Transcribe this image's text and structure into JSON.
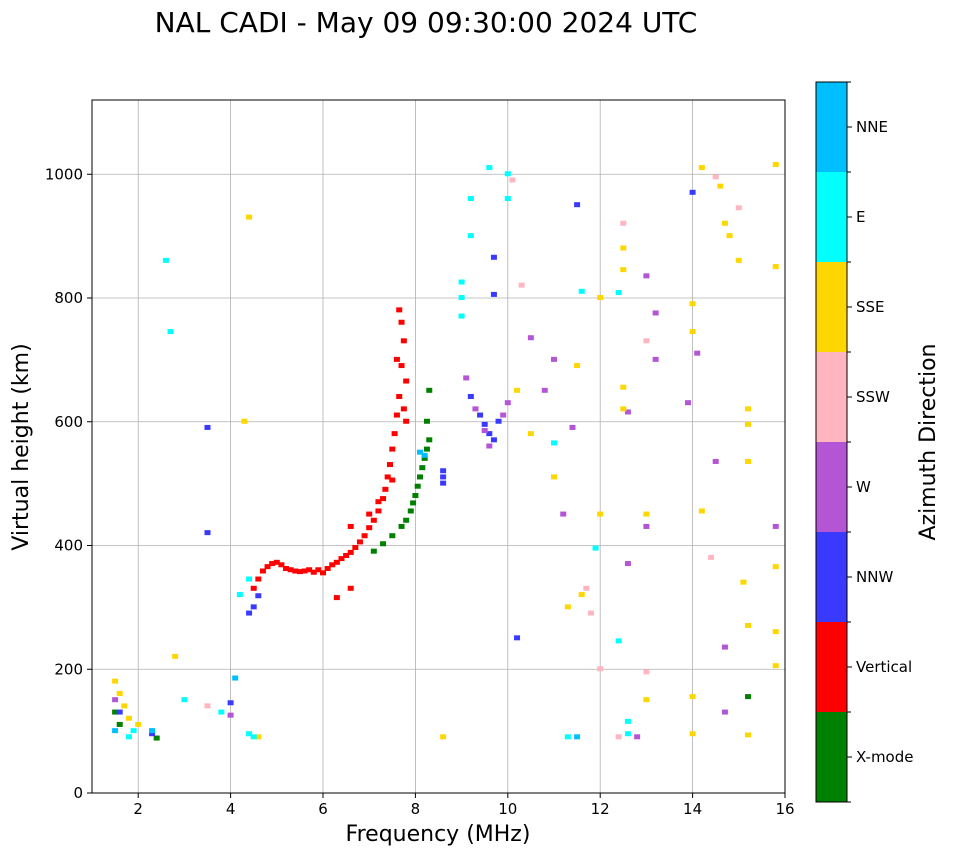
{
  "chart_data": {
    "type": "scatter",
    "title": "NAL CADI - May 09 09:30:00 2024 UTC",
    "xlabel": "Frequency (MHz)",
    "ylabel": "Virtual height (km)",
    "xlim": [
      1,
      16
    ],
    "ylim": [
      0,
      1120
    ],
    "xticks": [
      2,
      4,
      6,
      8,
      10,
      12,
      14,
      16
    ],
    "yticks": [
      0,
      200,
      400,
      600,
      800,
      1000
    ],
    "grid": true,
    "colorbar": {
      "label": "Azimuth Direction",
      "categories": [
        {
          "name": "X-mode",
          "color": "#008000"
        },
        {
          "name": "Vertical",
          "color": "#ff0000"
        },
        {
          "name": "NNW",
          "color": "#3a3aff"
        },
        {
          "name": "W",
          "color": "#b455d6"
        },
        {
          "name": "SSW",
          "color": "#ffb6c1"
        },
        {
          "name": "SSE",
          "color": "#ffd700"
        },
        {
          "name": "E",
          "color": "#00ffff"
        },
        {
          "name": "NNE",
          "color": "#00bfff"
        }
      ]
    },
    "series": [
      {
        "name": "Vertical",
        "points": [
          [
            4.5,
            330
          ],
          [
            4.6,
            345
          ],
          [
            4.7,
            358
          ],
          [
            4.8,
            365
          ],
          [
            4.9,
            370
          ],
          [
            5.0,
            372
          ],
          [
            5.1,
            368
          ],
          [
            5.2,
            362
          ],
          [
            5.3,
            360
          ],
          [
            5.4,
            358
          ],
          [
            5.5,
            357
          ],
          [
            5.6,
            358
          ],
          [
            5.7,
            360
          ],
          [
            5.8,
            356
          ],
          [
            5.9,
            360
          ],
          [
            6.0,
            355
          ],
          [
            6.1,
            362
          ],
          [
            6.2,
            368
          ],
          [
            6.3,
            372
          ],
          [
            6.4,
            378
          ],
          [
            6.5,
            383
          ],
          [
            6.6,
            388
          ],
          [
            6.7,
            396
          ],
          [
            6.8,
            405
          ],
          [
            6.9,
            415
          ],
          [
            7.0,
            428
          ],
          [
            7.1,
            440
          ],
          [
            7.2,
            455
          ],
          [
            7.3,
            475
          ],
          [
            7.35,
            490
          ],
          [
            7.4,
            510
          ],
          [
            7.45,
            530
          ],
          [
            7.5,
            555
          ],
          [
            7.55,
            580
          ],
          [
            7.6,
            610
          ],
          [
            7.65,
            640
          ],
          [
            7.7,
            690
          ],
          [
            7.75,
            730
          ],
          [
            7.7,
            760
          ],
          [
            7.65,
            780
          ],
          [
            7.8,
            600
          ],
          [
            7.75,
            620
          ],
          [
            7.2,
            470
          ],
          [
            7.0,
            450
          ],
          [
            6.6,
            430
          ],
          [
            6.3,
            315
          ],
          [
            6.6,
            330
          ],
          [
            7.5,
            505
          ],
          [
            7.6,
            700
          ],
          [
            7.8,
            665
          ]
        ]
      },
      {
        "name": "X-mode",
        "points": [
          [
            7.1,
            390
          ],
          [
            7.3,
            402
          ],
          [
            7.5,
            415
          ],
          [
            7.7,
            430
          ],
          [
            7.8,
            440
          ],
          [
            7.9,
            455
          ],
          [
            7.95,
            468
          ],
          [
            8.0,
            480
          ],
          [
            8.05,
            495
          ],
          [
            8.1,
            510
          ],
          [
            8.15,
            525
          ],
          [
            8.2,
            540
          ],
          [
            8.25,
            555
          ],
          [
            8.3,
            570
          ],
          [
            8.25,
            600
          ],
          [
            8.3,
            650
          ],
          [
            2.4,
            88
          ],
          [
            1.5,
            130
          ],
          [
            1.6,
            110
          ],
          [
            15.2,
            155
          ]
        ]
      },
      {
        "name": "NNW",
        "points": [
          [
            4.4,
            290
          ],
          [
            4.5,
            300
          ],
          [
            4.6,
            318
          ],
          [
            8.6,
            500
          ],
          [
            8.6,
            510
          ],
          [
            8.6,
            520
          ],
          [
            9.2,
            640
          ],
          [
            9.4,
            610
          ],
          [
            9.5,
            595
          ],
          [
            9.6,
            580
          ],
          [
            9.7,
            570
          ],
          [
            9.7,
            865
          ],
          [
            9.7,
            805
          ],
          [
            9.8,
            600
          ],
          [
            10.2,
            250
          ],
          [
            11.5,
            950
          ],
          [
            3.5,
            420
          ],
          [
            3.5,
            590
          ],
          [
            14.0,
            970
          ],
          [
            1.6,
            130
          ],
          [
            2.3,
            95
          ],
          [
            4.0,
            145
          ]
        ]
      },
      {
        "name": "W",
        "points": [
          [
            9.1,
            670
          ],
          [
            9.3,
            620
          ],
          [
            9.5,
            585
          ],
          [
            9.6,
            560
          ],
          [
            9.9,
            610
          ],
          [
            10.0,
            630
          ],
          [
            10.5,
            735
          ],
          [
            10.8,
            650
          ],
          [
            11.0,
            700
          ],
          [
            11.4,
            590
          ],
          [
            12.6,
            615
          ],
          [
            13.0,
            430
          ],
          [
            13.0,
            835
          ],
          [
            13.2,
            700
          ],
          [
            13.2,
            775
          ],
          [
            13.9,
            630
          ],
          [
            14.1,
            710
          ],
          [
            14.5,
            535
          ],
          [
            14.7,
            235
          ],
          [
            14.7,
            130
          ],
          [
            15.8,
            430
          ],
          [
            12.6,
            370
          ],
          [
            12.8,
            90
          ],
          [
            11.2,
            450
          ],
          [
            4.0,
            125
          ],
          [
            1.5,
            150
          ]
        ]
      },
      {
        "name": "SSW",
        "points": [
          [
            10.1,
            990
          ],
          [
            10.3,
            820
          ],
          [
            11.8,
            290
          ],
          [
            12.0,
            200
          ],
          [
            12.5,
            920
          ],
          [
            13.0,
            195
          ],
          [
            13.0,
            730
          ],
          [
            14.5,
            995
          ],
          [
            14.4,
            380
          ],
          [
            15.0,
            945
          ],
          [
            12.4,
            90
          ],
          [
            11.7,
            330
          ],
          [
            3.5,
            140
          ]
        ]
      },
      {
        "name": "SSE",
        "points": [
          [
            1.5,
            180
          ],
          [
            1.6,
            160
          ],
          [
            1.7,
            140
          ],
          [
            1.8,
            120
          ],
          [
            2.0,
            110
          ],
          [
            2.8,
            220
          ],
          [
            4.4,
            930
          ],
          [
            4.3,
            600
          ],
          [
            4.6,
            90
          ],
          [
            8.6,
            90
          ],
          [
            10.2,
            650
          ],
          [
            10.5,
            580
          ],
          [
            11.0,
            510
          ],
          [
            11.3,
            300
          ],
          [
            11.5,
            690
          ],
          [
            11.6,
            320
          ],
          [
            12.0,
            450
          ],
          [
            12.0,
            800
          ],
          [
            12.5,
            620
          ],
          [
            12.5,
            655
          ],
          [
            12.5,
            845
          ],
          [
            12.5,
            880
          ],
          [
            13.0,
            450
          ],
          [
            13.0,
            150
          ],
          [
            14.0,
            790
          ],
          [
            14.0,
            745
          ],
          [
            14.0,
            155
          ],
          [
            14.0,
            95
          ],
          [
            14.2,
            1010
          ],
          [
            14.2,
            455
          ],
          [
            14.6,
            980
          ],
          [
            14.7,
            920
          ],
          [
            14.8,
            900
          ],
          [
            15.0,
            860
          ],
          [
            15.2,
            620
          ],
          [
            15.2,
            595
          ],
          [
            15.2,
            535
          ],
          [
            15.1,
            340
          ],
          [
            15.2,
            270
          ],
          [
            15.2,
            93
          ],
          [
            15.8,
            1015
          ],
          [
            15.8,
            850
          ],
          [
            15.8,
            365
          ],
          [
            15.8,
            260
          ],
          [
            15.8,
            205
          ]
        ]
      },
      {
        "name": "E",
        "points": [
          [
            2.6,
            860
          ],
          [
            2.7,
            745
          ],
          [
            3.0,
            150
          ],
          [
            3.8,
            130
          ],
          [
            4.2,
            320
          ],
          [
            4.4,
            345
          ],
          [
            4.4,
            95
          ],
          [
            4.5,
            90
          ],
          [
            9.0,
            825
          ],
          [
            9.0,
            800
          ],
          [
            9.0,
            770
          ],
          [
            9.2,
            960
          ],
          [
            9.2,
            900
          ],
          [
            9.6,
            1010
          ],
          [
            10.0,
            1000
          ],
          [
            10.0,
            960
          ],
          [
            11.0,
            565
          ],
          [
            11.3,
            90
          ],
          [
            11.6,
            810
          ],
          [
            11.9,
            395
          ],
          [
            12.4,
            245
          ],
          [
            12.6,
            115
          ],
          [
            12.6,
            95
          ],
          [
            12.4,
            808
          ],
          [
            1.9,
            100
          ],
          [
            1.8,
            90
          ]
        ]
      },
      {
        "name": "NNE",
        "points": [
          [
            4.1,
            185
          ],
          [
            8.1,
            550
          ],
          [
            8.2,
            545
          ],
          [
            1.5,
            100
          ],
          [
            2.3,
            100
          ],
          [
            11.5,
            90
          ]
        ]
      }
    ]
  }
}
